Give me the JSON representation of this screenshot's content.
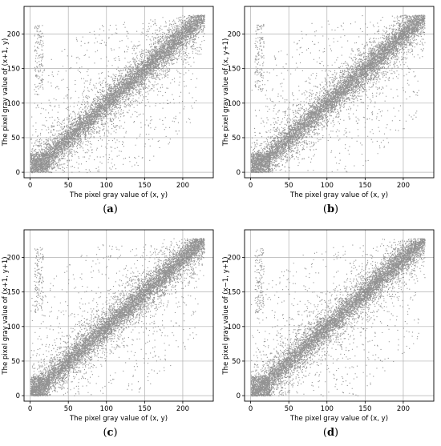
{
  "chart_data": [
    {
      "type": "scatter",
      "panel": "a",
      "caption_letter": "a",
      "xlabel": "The pixel gray value of (x, y)",
      "ylabel": "The pixel gray value of (x+1, y)",
      "xlim": [
        -8,
        240
      ],
      "ylim": [
        -8,
        240
      ],
      "xticks": [
        0,
        50,
        100,
        150,
        200
      ],
      "yticks": [
        0,
        50,
        100,
        150,
        200
      ],
      "grid": true,
      "color": "#808080",
      "points_summary": {
        "correlation_trend": "strong linear along y = x",
        "value_range": [
          0,
          227
        ]
      }
    },
    {
      "type": "scatter",
      "panel": "b",
      "caption_letter": "b",
      "xlabel": "The pixel gray value of (x, y)",
      "ylabel": "The pixel gray value of (x, y+1)",
      "xlim": [
        -8,
        240
      ],
      "ylim": [
        -8,
        240
      ],
      "xticks": [
        0,
        50,
        100,
        150,
        200
      ],
      "yticks": [
        0,
        50,
        100,
        150,
        200
      ],
      "grid": true,
      "color": "#808080",
      "points_summary": {
        "correlation_trend": "strong linear along y = x",
        "value_range": [
          0,
          227
        ]
      }
    },
    {
      "type": "scatter",
      "panel": "c",
      "caption_letter": "c",
      "xlabel": "The pixel gray value of (x, y)",
      "ylabel": "The pixel gray value of (x+1, y+1)",
      "xlim": [
        -8,
        240
      ],
      "ylim": [
        -8,
        240
      ],
      "xticks": [
        0,
        50,
        100,
        150,
        200
      ],
      "yticks": [
        0,
        50,
        100,
        150,
        200
      ],
      "grid": true,
      "color": "#808080",
      "points_summary": {
        "correlation_trend": "strong linear along y = x",
        "value_range": [
          0,
          227
        ]
      }
    },
    {
      "type": "scatter",
      "panel": "d",
      "caption_letter": "d",
      "xlabel": "The pixel gray value of (x, y)",
      "ylabel": "The pixel gray value of (x−1, y+1)",
      "xlim": [
        -8,
        240
      ],
      "ylim": [
        -8,
        240
      ],
      "xticks": [
        0,
        50,
        100,
        150,
        200
      ],
      "yticks": [
        0,
        50,
        100,
        150,
        200
      ],
      "grid": true,
      "color": "#808080",
      "points_summary": {
        "correlation_trend": "strong linear along y = x",
        "value_range": [
          0,
          227
        ]
      }
    }
  ]
}
